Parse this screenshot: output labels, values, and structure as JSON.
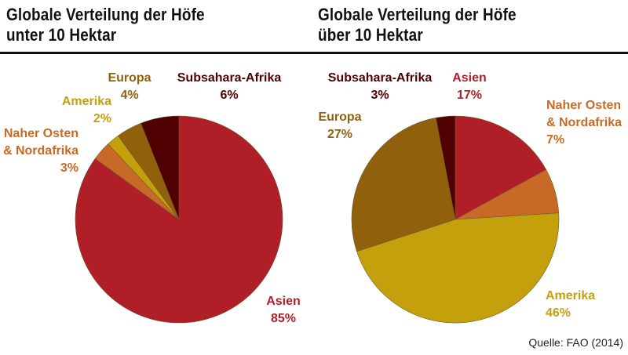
{
  "titles": {
    "left": [
      "Globale Verteilung der Höfe",
      "unter 10 Hektar"
    ],
    "right": [
      "Globale Verteilung der Höfe",
      "über 10 Hektar"
    ]
  },
  "source": "Quelle: FAO (2014)",
  "colors": {
    "asien": "#b01e27",
    "naher_osten": "#c86a27",
    "amerika": "#c4a00c",
    "europa": "#91600c",
    "subsahara": "#500000"
  },
  "chart_data": [
    {
      "type": "pie",
      "title": "Globale Verteilung der Höfe unter 10 Hektar",
      "slices": [
        {
          "key": "asien",
          "label_lines": [
            "Asien"
          ],
          "pct_label": "85%",
          "value": 85
        },
        {
          "key": "naher_osten",
          "label_lines": [
            "Naher Osten",
            "& Nordafrika"
          ],
          "pct_label": "3%",
          "value": 3
        },
        {
          "key": "amerika",
          "label_lines": [
            "Amerika"
          ],
          "pct_label": "2%",
          "value": 2
        },
        {
          "key": "europa",
          "label_lines": [
            "Europa"
          ],
          "pct_label": "4%",
          "value": 4
        },
        {
          "key": "subsahara",
          "label_lines": [
            "Subsahara-Afrika"
          ],
          "pct_label": "6%",
          "value": 6
        }
      ]
    },
    {
      "type": "pie",
      "title": "Globale Verteilung der Höfe über 10 Hektar",
      "slices": [
        {
          "key": "asien",
          "label_lines": [
            "Asien"
          ],
          "pct_label": "17%",
          "value": 17
        },
        {
          "key": "naher_osten",
          "label_lines": [
            "Naher Osten",
            "& Nordafrika"
          ],
          "pct_label": "7%",
          "value": 7
        },
        {
          "key": "amerika",
          "label_lines": [
            "Amerika"
          ],
          "pct_label": "46%",
          "value": 46
        },
        {
          "key": "europa",
          "label_lines": [
            "Europa"
          ],
          "pct_label": "27%",
          "value": 27
        },
        {
          "key": "subsahara",
          "label_lines": [
            "Subsahara-Afrika"
          ],
          "pct_label": "3%",
          "value": 3
        }
      ]
    }
  ]
}
